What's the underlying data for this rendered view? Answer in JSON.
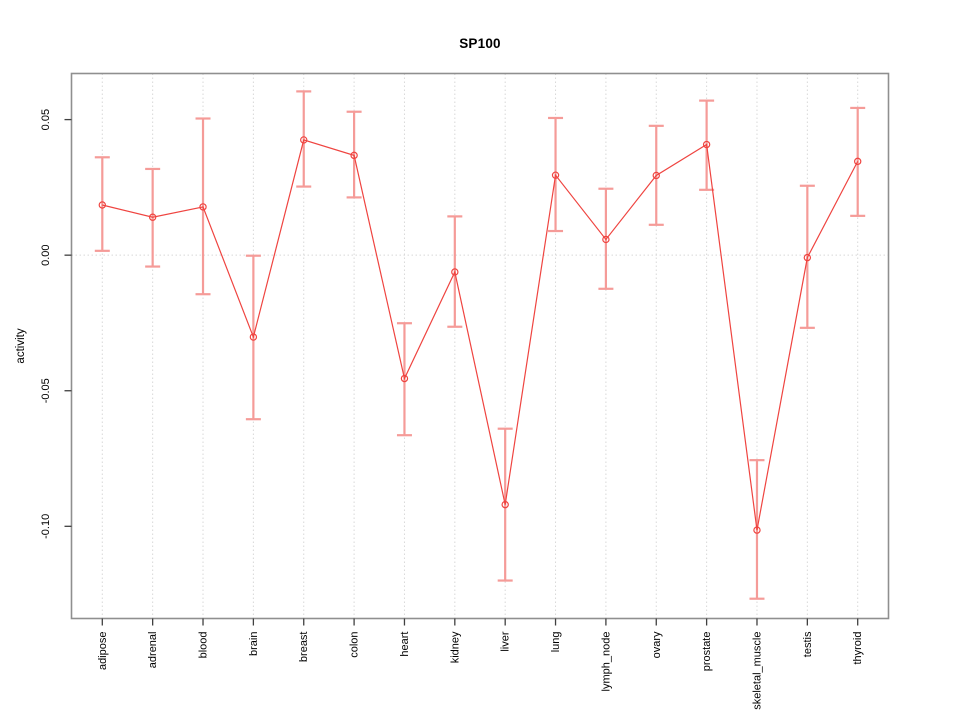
{
  "chart_data": {
    "type": "line",
    "title": "SP100",
    "xlabel": "",
    "ylabel": "activity",
    "legend_position": "none",
    "grid": "vertical dotted gridline at every category; dotted horizontal line at y=0 only",
    "categories": [
      "adipose",
      "adrenal",
      "blood",
      "brain",
      "breast",
      "colon",
      "heart",
      "kidney",
      "liver",
      "lung",
      "lymph_node",
      "ovary",
      "prostate",
      "skeletal_muscle",
      "testis",
      "thyroid"
    ],
    "series": [
      {
        "name": "SP100 activity",
        "values": [
          0.0185,
          0.014,
          0.0178,
          -0.0302,
          0.0425,
          0.0368,
          -0.0455,
          -0.0062,
          -0.092,
          0.0295,
          0.0058,
          0.0294,
          0.0408,
          -0.1014,
          -0.0009,
          0.0346
        ],
        "error_high": [
          0.0361,
          0.0318,
          0.0504,
          -0.0002,
          0.0604,
          0.0529,
          -0.0251,
          0.0143,
          -0.064,
          0.0506,
          0.0245,
          0.0477,
          0.057,
          -0.0756,
          0.0256,
          0.0543
        ],
        "error_low": [
          0.0016,
          -0.0042,
          -0.0144,
          -0.0605,
          0.0253,
          0.0213,
          -0.0664,
          -0.0264,
          -0.12,
          0.0089,
          -0.0124,
          0.0112,
          0.0241,
          -0.1267,
          -0.0268,
          0.0145
        ]
      }
    ],
    "marker": "open-circle",
    "y_ticks": [
      {
        "value": 0.05,
        "label": "0.05"
      },
      {
        "value": 0.0,
        "label": "0.00"
      },
      {
        "value": -0.05,
        "label": "-0.05"
      },
      {
        "value": -0.1,
        "label": "-0.10"
      }
    ],
    "ylim": [
      -0.134,
      0.067
    ],
    "colors": {
      "line": "#ef4440",
      "marker": "#ef4440",
      "error_bar": "#f59b98",
      "grid": "#d8d8d8",
      "zero_line": "#d8d8d8",
      "box_border": "#8f8f8f",
      "tick": "#404040",
      "text": "#000000",
      "background": "#ffffff"
    }
  }
}
